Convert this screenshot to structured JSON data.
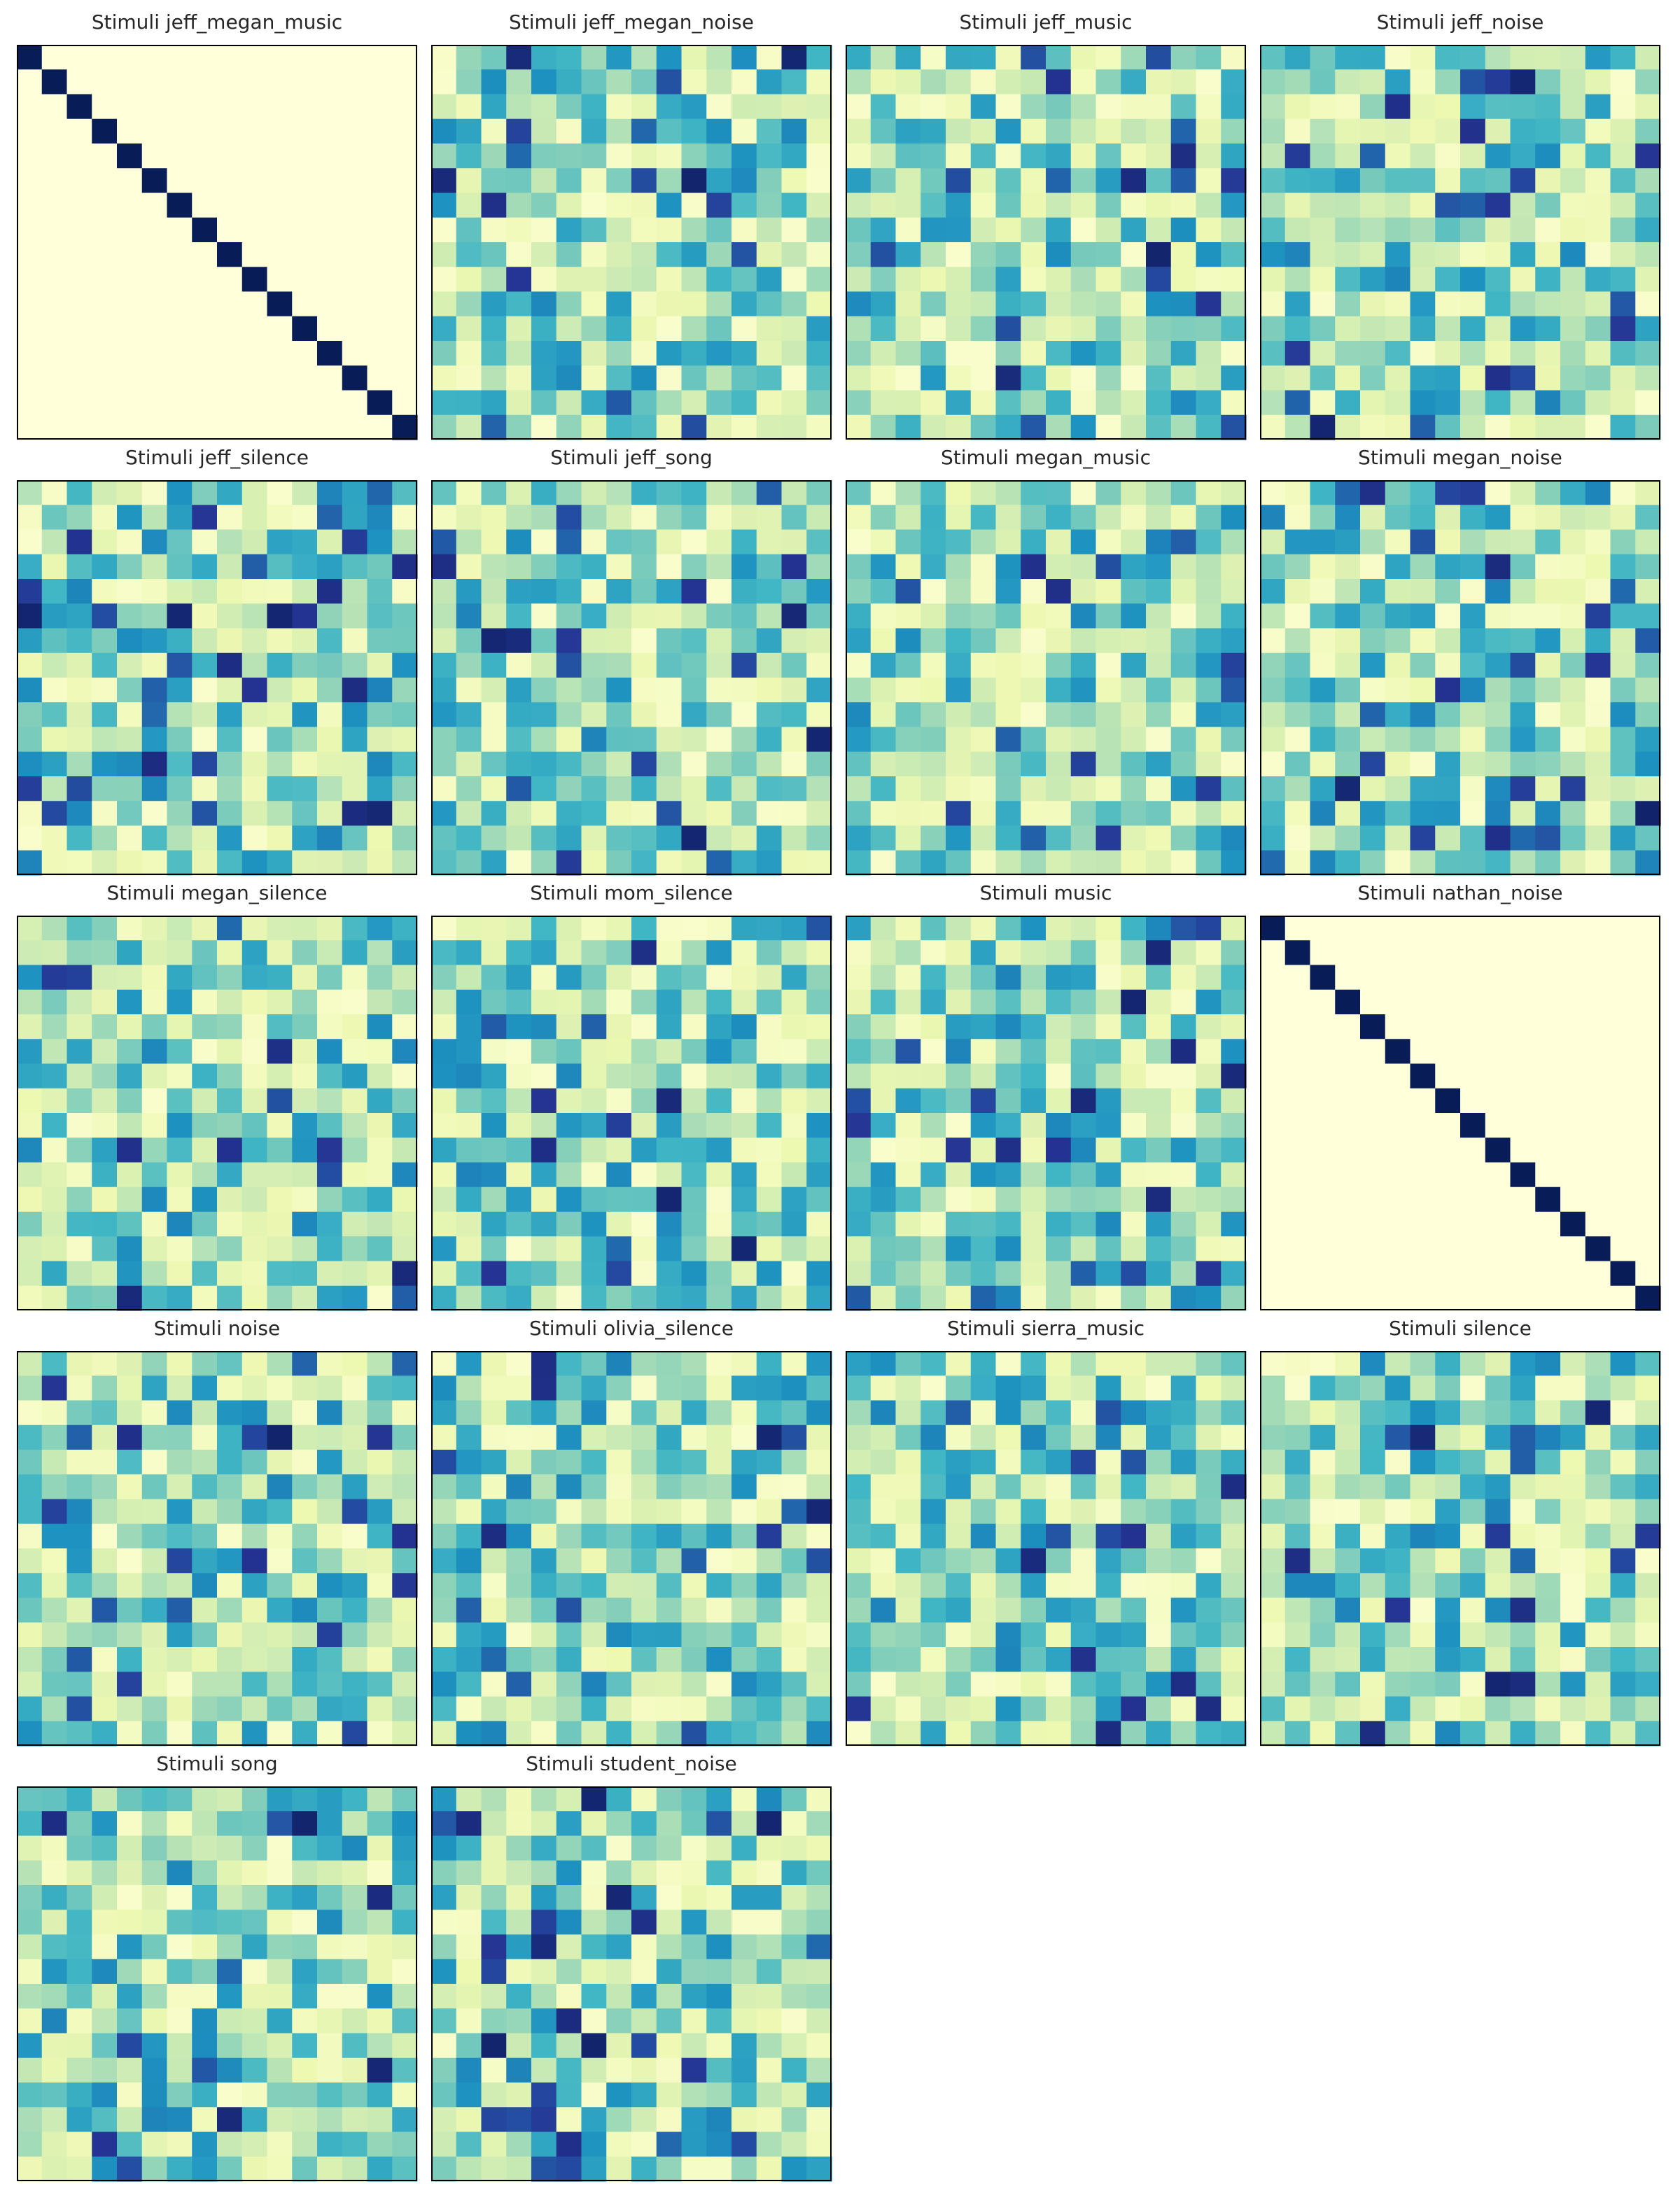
{
  "figure": {
    "colormap": "YlGnBu",
    "colormap_stops": [
      "#ffffd9",
      "#edf8b1",
      "#c7e9b4",
      "#7fcdbb",
      "#41b6c4",
      "#1d91c0",
      "#225ea8",
      "#253494",
      "#081d58"
    ],
    "frame_color": "#000000"
  },
  "chart_data": [
    {
      "type": "heatmap",
      "title": "Stimuli jeff_megan_music",
      "size": 16,
      "pattern": "identity",
      "seed": 0
    },
    {
      "type": "heatmap",
      "title": "Stimuli jeff_megan_noise",
      "size": 16,
      "pattern": "random",
      "seed": 11
    },
    {
      "type": "heatmap",
      "title": "Stimuli jeff_music",
      "size": 16,
      "pattern": "random",
      "seed": 23
    },
    {
      "type": "heatmap",
      "title": "Stimuli jeff_noise",
      "size": 16,
      "pattern": "random",
      "seed": 37
    },
    {
      "type": "heatmap",
      "title": "Stimuli jeff_silence",
      "size": 16,
      "pattern": "random",
      "seed": 41
    },
    {
      "type": "heatmap",
      "title": "Stimuli jeff_song",
      "size": 16,
      "pattern": "random",
      "seed": 53
    },
    {
      "type": "heatmap",
      "title": "Stimuli megan_music",
      "size": 16,
      "pattern": "random",
      "seed": 67
    },
    {
      "type": "heatmap",
      "title": "Stimuli megan_noise",
      "size": 16,
      "pattern": "random",
      "seed": 71
    },
    {
      "type": "heatmap",
      "title": "Stimuli megan_silence",
      "size": 16,
      "pattern": "random",
      "seed": 83
    },
    {
      "type": "heatmap",
      "title": "Stimuli mom_silence",
      "size": 16,
      "pattern": "random",
      "seed": 97
    },
    {
      "type": "heatmap",
      "title": "Stimuli music",
      "size": 16,
      "pattern": "random",
      "seed": 101
    },
    {
      "type": "heatmap",
      "title": "Stimuli nathan_noise",
      "size": 16,
      "pattern": "identity",
      "seed": 0
    },
    {
      "type": "heatmap",
      "title": "Stimuli noise",
      "size": 16,
      "pattern": "random",
      "seed": 113
    },
    {
      "type": "heatmap",
      "title": "Stimuli olivia_silence",
      "size": 16,
      "pattern": "random",
      "seed": 127
    },
    {
      "type": "heatmap",
      "title": "Stimuli sierra_music",
      "size": 16,
      "pattern": "random",
      "seed": 131
    },
    {
      "type": "heatmap",
      "title": "Stimuli silence",
      "size": 16,
      "pattern": "random",
      "seed": 149
    },
    {
      "type": "heatmap",
      "title": "Stimuli song",
      "size": 16,
      "pattern": "random",
      "seed": 151
    },
    {
      "type": "heatmap",
      "title": "Stimuli student_noise",
      "size": 16,
      "pattern": "random",
      "seed": 163
    }
  ]
}
